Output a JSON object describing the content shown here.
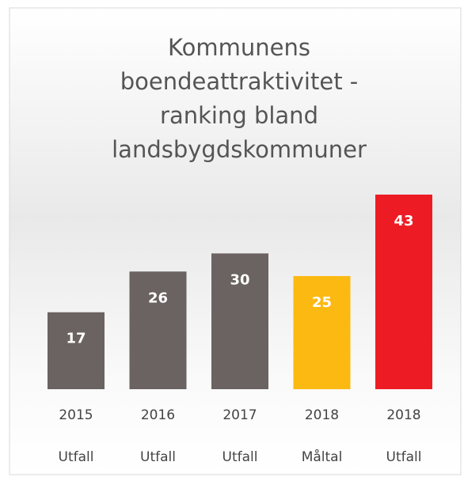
{
  "chart_data": {
    "type": "bar",
    "title": [
      "Kommunens",
      "boendeattraktivitet -",
      "ranking bland",
      "landsbygdskommuner"
    ],
    "categories": [
      [
        "2015",
        "Utfall"
      ],
      [
        "2016",
        "Utfall"
      ],
      [
        "2017",
        "Utfall"
      ],
      [
        "2018",
        "Måltal"
      ],
      [
        "2018",
        "Utfall"
      ]
    ],
    "values": [
      17,
      26,
      30,
      25,
      43
    ],
    "colors": [
      "#6b6361",
      "#6b6361",
      "#6b6361",
      "#fbb912",
      "#ed1c24"
    ]
  }
}
